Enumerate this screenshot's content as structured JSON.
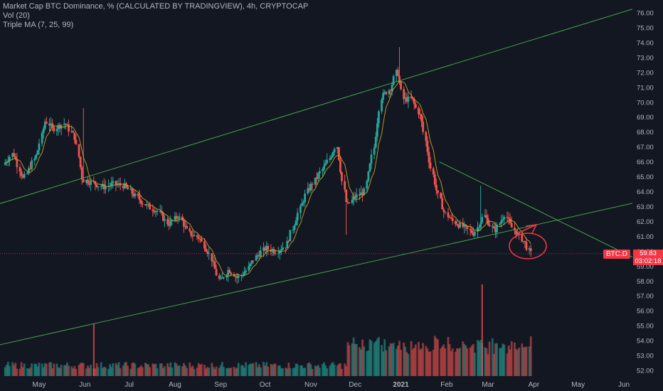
{
  "legend": {
    "title": "Market Cap BTC Dominance, % (CALCULATED BY TRADINGVIEW), 4h, CRYPTOCAP",
    "vol": "Vol (20)",
    "ma": "Triple MA (7, 25, 99)"
  },
  "price_tag": {
    "symbol": "BTC.D",
    "value": "59.83",
    "countdown": "03:02:18"
  },
  "colors": {
    "background": "#131722",
    "up": "#26a69a",
    "down": "#ef5350",
    "trendline": "#4caf50",
    "ma": "#c9a227",
    "annotation": "#f23645",
    "axis_text": "#b2b5be",
    "grid": "#1e222d"
  },
  "chart_data": {
    "type": "candlestick",
    "symbol": "BTC.D",
    "timeframe": "4h",
    "y_ticks": [
      "76.00",
      "75.00",
      "74.00",
      "73.00",
      "72.00",
      "71.00",
      "70.00",
      "69.00",
      "68.00",
      "67.00",
      "66.00",
      "65.00",
      "64.00",
      "63.00",
      "62.00",
      "61.00",
      "60.00",
      "59.00",
      "58.00",
      "57.00",
      "56.00",
      "55.00",
      "54.00",
      "53.00",
      "52.00"
    ],
    "ylim": [
      51.5,
      76.8
    ],
    "x_ticks": [
      "May",
      "Jun",
      "Jul",
      "Aug",
      "Sep",
      "Oct",
      "Nov",
      "Dec",
      "2021",
      "Feb",
      "Mar",
      "Apr",
      "May",
      "Jun"
    ],
    "price_path": [
      [
        "2020-04-08",
        65.8
      ],
      [
        "2020-04-15",
        66.6
      ],
      [
        "2020-04-22",
        64.8
      ],
      [
        "2020-05-01",
        66.5
      ],
      [
        "2020-05-07",
        68.8
      ],
      [
        "2020-05-12",
        68.2
      ],
      [
        "2020-05-20",
        68.6
      ],
      [
        "2020-05-27",
        67.6
      ],
      [
        "2020-06-01",
        64.8
      ],
      [
        "2020-06-08",
        64.6
      ],
      [
        "2020-06-15",
        64.3
      ],
      [
        "2020-06-22",
        64.5
      ],
      [
        "2020-06-29",
        64.4
      ],
      [
        "2020-07-08",
        63.6
      ],
      [
        "2020-07-15",
        63.0
      ],
      [
        "2020-07-22",
        62.7
      ],
      [
        "2020-07-29",
        61.8
      ],
      [
        "2020-08-05",
        62.4
      ],
      [
        "2020-08-12",
        61.2
      ],
      [
        "2020-08-19",
        60.9
      ],
      [
        "2020-08-26",
        59.8
      ],
      [
        "2020-09-02",
        57.9
      ],
      [
        "2020-09-08",
        58.8
      ],
      [
        "2020-09-14",
        58.2
      ],
      [
        "2020-09-20",
        58.7
      ],
      [
        "2020-09-26",
        59.6
      ],
      [
        "2020-10-03",
        60.2
      ],
      [
        "2020-10-10",
        60.0
      ],
      [
        "2020-10-17",
        60.4
      ],
      [
        "2020-10-24",
        62.3
      ],
      [
        "2020-10-31",
        64.0
      ],
      [
        "2020-11-07",
        65.0
      ],
      [
        "2020-11-14",
        66.0
      ],
      [
        "2020-11-20",
        67.2
      ],
      [
        "2020-11-24",
        64.7
      ],
      [
        "2020-11-27",
        63.0
      ],
      [
        "2020-12-02",
        63.6
      ],
      [
        "2020-12-09",
        64.0
      ],
      [
        "2020-12-15",
        66.8
      ],
      [
        "2020-12-20",
        70.3
      ],
      [
        "2020-12-27",
        71.0
      ],
      [
        "2020-12-31",
        72.2
      ],
      [
        "2021-01-04",
        70.2
      ],
      [
        "2021-01-10",
        70.2
      ],
      [
        "2021-01-16",
        69.0
      ],
      [
        "2021-01-22",
        66.0
      ],
      [
        "2021-01-27",
        64.0
      ],
      [
        "2021-02-01",
        62.6
      ],
      [
        "2021-02-07",
        62.0
      ],
      [
        "2021-02-14",
        61.6
      ],
      [
        "2021-02-21",
        61.2
      ],
      [
        "2021-02-28",
        62.4
      ],
      [
        "2021-03-07",
        61.3
      ],
      [
        "2021-03-14",
        62.5
      ],
      [
        "2021-03-18",
        61.7
      ],
      [
        "2021-03-23",
        61.1
      ],
      [
        "2021-03-28",
        60.5
      ],
      [
        "2021-03-31",
        59.83
      ]
    ],
    "current_value": 59.83,
    "trendlines": [
      {
        "from": [
          "2020-04-08",
          63.3
        ],
        "to": [
          "2021-06-15",
          76.5
        ]
      },
      {
        "from": [
          "2020-04-08",
          53.8
        ],
        "to": [
          "2021-06-15",
          63.4
        ]
      },
      {
        "from": [
          "2021-01-27",
          66.0
        ],
        "to": [
          "2021-06-15",
          59.2
        ]
      }
    ],
    "volume_spikes": [
      [
        "2020-06-07",
        "high"
      ],
      [
        "2021-02-25",
        "high"
      ]
    ],
    "grid": false
  }
}
